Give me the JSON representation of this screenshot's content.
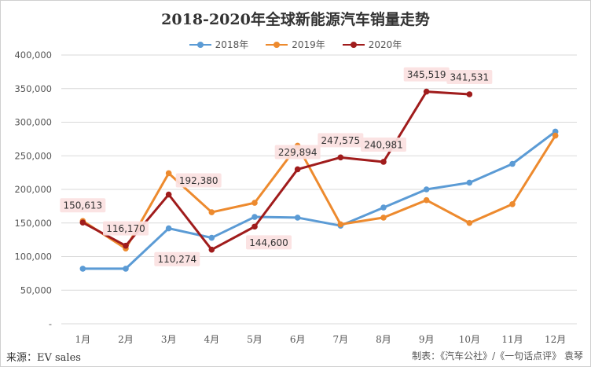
{
  "chart_data": {
    "type": "line",
    "title": "2018-2020年全球新能源汽车销量走势",
    "categories": [
      "1月",
      "2月",
      "3月",
      "4月",
      "5月",
      "6月",
      "7月",
      "8月",
      "9月",
      "10月",
      "11月",
      "12月"
    ],
    "ylim": [
      0,
      400000
    ],
    "y_ticks": [
      "-",
      "50,000",
      "100,000",
      "150,000",
      "200,000",
      "250,000",
      "300,000",
      "350,000",
      "400,000"
    ],
    "grid": true,
    "legend_position": "top",
    "series": [
      {
        "name": "2018年",
        "color": "#5b9bd5",
        "values": [
          82000,
          82000,
          142000,
          128000,
          159000,
          158000,
          146000,
          173000,
          200000,
          210000,
          238000,
          286000
        ]
      },
      {
        "name": "2019年",
        "color": "#ed8a2e",
        "values": [
          153000,
          112000,
          224000,
          166000,
          180000,
          265000,
          148000,
          158000,
          184000,
          150000,
          178000,
          280000
        ]
      },
      {
        "name": "2020年",
        "color": "#a01c1c",
        "values": [
          150613,
          116170,
          192380,
          110274,
          144600,
          229894,
          247575,
          240981,
          345519,
          341531,
          null,
          null
        ]
      }
    ],
    "data_labels": [
      {
        "series": 2,
        "index": 0,
        "text": "150,613",
        "pos": "above"
      },
      {
        "series": 2,
        "index": 1,
        "text": "116,170",
        "pos": "above"
      },
      {
        "series": 2,
        "index": 2,
        "text": "192,380",
        "pos": "right"
      },
      {
        "series": 2,
        "index": 3,
        "text": "110,274",
        "pos": "left"
      },
      {
        "series": 2,
        "index": 4,
        "text": "144,600",
        "pos": "below-right"
      },
      {
        "series": 2,
        "index": 5,
        "text": "229,894",
        "pos": "above"
      },
      {
        "series": 2,
        "index": 6,
        "text": "247,575",
        "pos": "above"
      },
      {
        "series": 2,
        "index": 7,
        "text": "240,981",
        "pos": "above"
      },
      {
        "series": 2,
        "index": 8,
        "text": "345,519",
        "pos": "above"
      },
      {
        "series": 2,
        "index": 9,
        "text": "341,531",
        "pos": "above"
      }
    ]
  },
  "footer": {
    "source": "来源：EV sales",
    "credit": "制表：《汽车公社》/《一句话点评》 袁琴"
  }
}
